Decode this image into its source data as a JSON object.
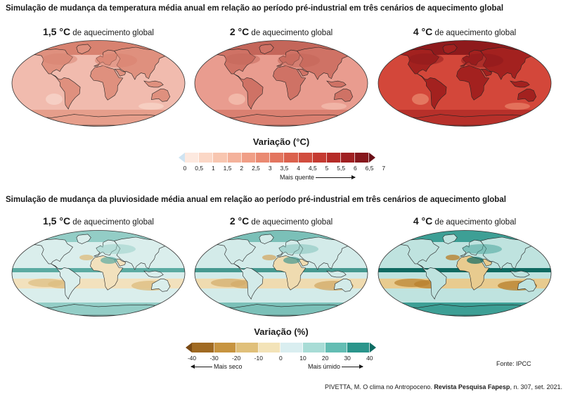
{
  "temperature": {
    "title": "Simulação de mudança da temperatura média anual em relação ao período pré-industrial em três cenários de aquecimento global",
    "scenarios": [
      {
        "level": "1,5 °C",
        "label": "de aquecimento global",
        "intensity": 0.25
      },
      {
        "level": "2 °C",
        "label": "de aquecimento global",
        "intensity": 0.45
      },
      {
        "level": "4 °C",
        "label": "de aquecimento global",
        "intensity": 1.0
      }
    ],
    "legend": {
      "title": "Variação (°C)",
      "ticks": [
        "0",
        "0,5",
        "1",
        "1,5",
        "2",
        "2,5",
        "3",
        "3,5",
        "4",
        "4,5",
        "5",
        "5,5",
        "6",
        "6,5",
        "7"
      ],
      "colors": [
        "#cfe4f2",
        "#fde9df",
        "#fbd7c6",
        "#f8c6b0",
        "#f4b29b",
        "#f09e86",
        "#ea8a72",
        "#e3755f",
        "#db614d",
        "#d14d3e",
        "#c53a31",
        "#b52b27",
        "#a01f21",
        "#86171c",
        "#6a1017"
      ],
      "arrow_label": "Mais quente"
    }
  },
  "precipitation": {
    "title": "Simulação de mudança da pluviosidade média anual em relação ao período pré-industrial em três cenários de aquecimento global",
    "scenarios": [
      {
        "level": "1,5 °C",
        "label": "de aquecimento global",
        "intensity": 0.3
      },
      {
        "level": "2 °C",
        "label": "de aquecimento global",
        "intensity": 0.5
      },
      {
        "level": "4 °C",
        "label": "de aquecimento global",
        "intensity": 1.0
      }
    ],
    "legend": {
      "title": "Variação (%)",
      "ticks": [
        "-40",
        "-30",
        "-20",
        "-10",
        "0",
        "10",
        "20",
        "30",
        "40"
      ],
      "colors": [
        "#7a4a14",
        "#a06a22",
        "#c79440",
        "#e0c07a",
        "#f3e3b8",
        "#d9eef0",
        "#a8dcd6",
        "#63bdb3",
        "#2a958b",
        "#0e6c63"
      ],
      "left_label": "Mais seco",
      "right_label": "Mais úmido"
    }
  },
  "source": "Fonte: IPCC",
  "credit": {
    "author": "PIVETTA, M. O clima no Antropoceno. ",
    "publication": "Revista Pesquisa Fapesp",
    "details": ", n. 307, set. 2021."
  }
}
